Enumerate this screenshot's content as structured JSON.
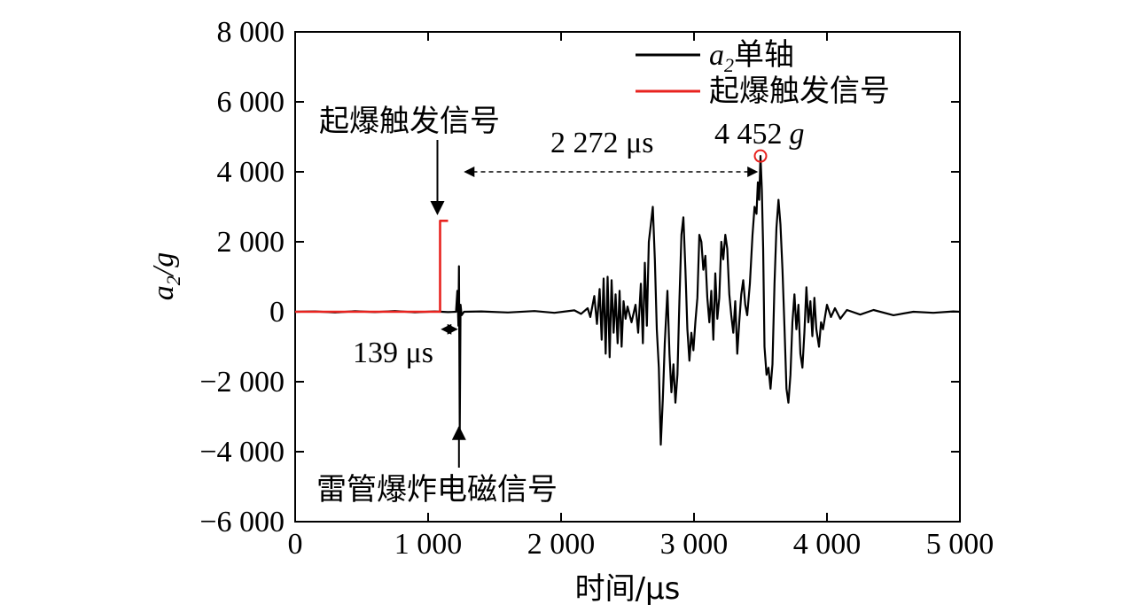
{
  "chart_data": {
    "type": "line",
    "xlabel": "时间/μs",
    "ylabel_main": "a",
    "ylabel_sub": "2",
    "ylabel_tail": "/g",
    "xlim": [
      0,
      5000
    ],
    "ylim": [
      -6000,
      8000
    ],
    "x_ticks": [
      0,
      1000,
      2000,
      3000,
      4000,
      5000
    ],
    "x_tick_labels": [
      "0",
      "1 000",
      "2 000",
      "3 000",
      "4 000",
      "5 000"
    ],
    "y_ticks": [
      -6000,
      -4000,
      -2000,
      0,
      2000,
      4000,
      6000,
      8000
    ],
    "y_tick_labels": [
      "−6 000",
      "−4 000",
      "−2 000",
      "0",
      "2 000",
      "4 000",
      "6 000",
      "8 000"
    ],
    "grid": false,
    "legend_position": "top-right",
    "series": [
      {
        "name_main": "a",
        "name_sub": "2",
        "name_tail": "单轴",
        "color": "#000000",
        "points": [
          [
            0,
            0
          ],
          [
            150,
            10
          ],
          [
            300,
            -20
          ],
          [
            450,
            15
          ],
          [
            600,
            -10
          ],
          [
            750,
            20
          ],
          [
            900,
            -15
          ],
          [
            1050,
            10
          ],
          [
            1150,
            -10
          ],
          [
            1210,
            0
          ],
          [
            1220,
            600
          ],
          [
            1228,
            -400
          ],
          [
            1232,
            1300
          ],
          [
            1238,
            -3400
          ],
          [
            1244,
            200
          ],
          [
            1252,
            -100
          ],
          [
            1270,
            0
          ],
          [
            1400,
            10
          ],
          [
            1600,
            -20
          ],
          [
            1800,
            20
          ],
          [
            1950,
            -30
          ],
          [
            2100,
            40
          ],
          [
            2150,
            -60
          ],
          [
            2200,
            100
          ],
          [
            2220,
            -150
          ],
          [
            2250,
            450
          ],
          [
            2270,
            -350
          ],
          [
            2290,
            650
          ],
          [
            2305,
            -800
          ],
          [
            2320,
            950
          ],
          [
            2335,
            -1200
          ],
          [
            2350,
            1000
          ],
          [
            2365,
            -1300
          ],
          [
            2380,
            900
          ],
          [
            2395,
            -600
          ],
          [
            2410,
            500
          ],
          [
            2425,
            -900
          ],
          [
            2440,
            600
          ],
          [
            2455,
            -1000
          ],
          [
            2470,
            300
          ],
          [
            2485,
            -200
          ],
          [
            2500,
            150
          ],
          [
            2530,
            -300
          ],
          [
            2560,
            200
          ],
          [
            2580,
            -600
          ],
          [
            2600,
            800
          ],
          [
            2615,
            -900
          ],
          [
            2630,
            1400
          ],
          [
            2645,
            -400
          ],
          [
            2660,
            2000
          ],
          [
            2675,
            2500
          ],
          [
            2690,
            3000
          ],
          [
            2705,
            1500
          ],
          [
            2720,
            -500
          ],
          [
            2735,
            -1600
          ],
          [
            2750,
            -3800
          ],
          [
            2765,
            -2500
          ],
          [
            2780,
            -900
          ],
          [
            2800,
            600
          ],
          [
            2815,
            -1200
          ],
          [
            2830,
            -2300
          ],
          [
            2845,
            -1500
          ],
          [
            2860,
            -2600
          ],
          [
            2875,
            -1800
          ],
          [
            2890,
            300
          ],
          [
            2905,
            2200
          ],
          [
            2920,
            2700
          ],
          [
            2935,
            1200
          ],
          [
            2950,
            -500
          ],
          [
            2965,
            -1400
          ],
          [
            2980,
            -600
          ],
          [
            2995,
            -1100
          ],
          [
            3010,
            -300
          ],
          [
            3025,
            400
          ],
          [
            3040,
            2200
          ],
          [
            3055,
            2000
          ],
          [
            3070,
            1200
          ],
          [
            3085,
            1600
          ],
          [
            3100,
            400
          ],
          [
            3115,
            -300
          ],
          [
            3130,
            600
          ],
          [
            3145,
            -800
          ],
          [
            3160,
            1100
          ],
          [
            3175,
            -200
          ],
          [
            3190,
            400
          ],
          [
            3205,
            2000
          ],
          [
            3220,
            1500
          ],
          [
            3235,
            2200
          ],
          [
            3250,
            1800
          ],
          [
            3265,
            500
          ],
          [
            3280,
            -100
          ],
          [
            3295,
            -600
          ],
          [
            3310,
            300
          ],
          [
            3325,
            -1200
          ],
          [
            3340,
            -300
          ],
          [
            3355,
            500
          ],
          [
            3370,
            900
          ],
          [
            3385,
            200
          ],
          [
            3400,
            -100
          ],
          [
            3420,
            800
          ],
          [
            3440,
            2200
          ],
          [
            3455,
            3000
          ],
          [
            3470,
            2800
          ],
          [
            3480,
            3700
          ],
          [
            3490,
            3200
          ],
          [
            3500,
            4452
          ],
          [
            3510,
            3500
          ],
          [
            3520,
            1800
          ],
          [
            3530,
            -1000
          ],
          [
            3545,
            -1800
          ],
          [
            3560,
            -1600
          ],
          [
            3575,
            -2200
          ],
          [
            3590,
            -1500
          ],
          [
            3605,
            800
          ],
          [
            3620,
            2400
          ],
          [
            3635,
            3200
          ],
          [
            3650,
            2500
          ],
          [
            3665,
            1200
          ],
          [
            3680,
            -400
          ],
          [
            3695,
            -2200
          ],
          [
            3710,
            -2600
          ],
          [
            3725,
            -1800
          ],
          [
            3740,
            -300
          ],
          [
            3755,
            500
          ],
          [
            3770,
            -500
          ],
          [
            3785,
            200
          ],
          [
            3800,
            -1200
          ],
          [
            3815,
            -1600
          ],
          [
            3830,
            -600
          ],
          [
            3845,
            700
          ],
          [
            3860,
            -300
          ],
          [
            3875,
            300
          ],
          [
            3890,
            -700
          ],
          [
            3905,
            400
          ],
          [
            3920,
            -500
          ],
          [
            3940,
            -1000
          ],
          [
            3955,
            -300
          ],
          [
            3970,
            -500
          ],
          [
            4000,
            200
          ],
          [
            4030,
            -150
          ],
          [
            4060,
            100
          ],
          [
            4100,
            -200
          ],
          [
            4150,
            50
          ],
          [
            4250,
            -80
          ],
          [
            4350,
            50
          ],
          [
            4500,
            -100
          ],
          [
            4650,
            0
          ],
          [
            4800,
            -30
          ],
          [
            4950,
            10
          ],
          [
            5000,
            0
          ]
        ]
      },
      {
        "name": "起爆触发信号",
        "color": "#e8231f",
        "points": [
          [
            0,
            0
          ],
          [
            1090,
            0
          ],
          [
            1090,
            2600
          ],
          [
            1150,
            2600
          ]
        ]
      }
    ],
    "annotations": {
      "trigger_label": "起爆触发信号",
      "detonator_label": "雷管爆炸电磁信号",
      "delay_small": "139 μs",
      "delay_large": "2 272 μs",
      "peak_label_num": "4 452",
      "peak_label_unit": "g",
      "peak": [
        3500,
        4452
      ],
      "delay_large_span": [
        1250,
        3500
      ],
      "delay_small_span": [
        1090,
        1230
      ]
    }
  }
}
